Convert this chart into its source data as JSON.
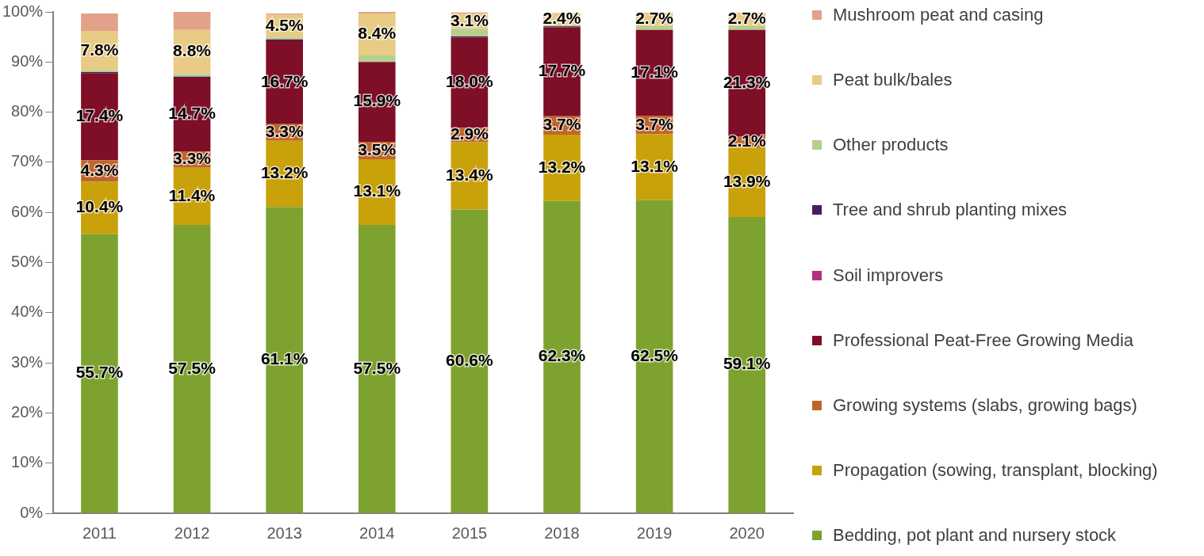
{
  "chart_data": {
    "type": "bar",
    "stacked": true,
    "categories": [
      "2011",
      "2012",
      "2013",
      "2014",
      "2015",
      "2018",
      "2019",
      "2020"
    ],
    "ylim": [
      0,
      100
    ],
    "yticks": [
      {
        "value": 0,
        "label": "0%"
      },
      {
        "value": 10,
        "label": "10%"
      },
      {
        "value": 20,
        "label": "20%"
      },
      {
        "value": 30,
        "label": "30%"
      },
      {
        "value": 40,
        "label": "40%"
      },
      {
        "value": 50,
        "label": "50%"
      },
      {
        "value": 60,
        "label": "60%"
      },
      {
        "value": 70,
        "label": "70%"
      },
      {
        "value": 80,
        "label": "80%"
      },
      {
        "value": 90,
        "label": "90%"
      },
      {
        "value": 100,
        "label": "100%"
      }
    ],
    "grid": false,
    "legend": "right",
    "series": [
      {
        "name": "Bedding, pot plant and nursery stock",
        "color": "#7ea22f",
        "values": [
          55.7,
          57.5,
          61.1,
          57.5,
          60.6,
          62.3,
          62.5,
          59.1
        ],
        "value_labels": [
          "55.7%",
          "57.5%",
          "61.1%",
          "57.5%",
          "60.6%",
          "62.3%",
          "62.5%",
          "59.1%"
        ]
      },
      {
        "name": "Propagation (sowing, transplant, blocking)",
        "color": "#c9a10a",
        "values": [
          10.4,
          11.4,
          13.2,
          13.1,
          13.4,
          13.2,
          13.1,
          13.9
        ],
        "value_labels": [
          "10.4%",
          "11.4%",
          "13.2%",
          "13.1%",
          "13.4%",
          "13.2%",
          "13.1%",
          "13.9%"
        ]
      },
      {
        "name": "Growing systems (slabs, growing bags)",
        "color": "#c0652a",
        "values": [
          4.3,
          3.3,
          3.3,
          3.5,
          2.9,
          3.7,
          3.7,
          2.1
        ],
        "value_labels": [
          "4.3%",
          "3.3%",
          "3.3%",
          "3.5%",
          "2.9%",
          "3.7%",
          "3.7%",
          "2.1%"
        ]
      },
      {
        "name": "Professional Peat-Free Growing Media",
        "color": "#7f0e27",
        "values": [
          17.4,
          14.7,
          16.7,
          15.9,
          18.0,
          17.7,
          17.1,
          21.3
        ],
        "value_labels": [
          "17.4%",
          "14.7%",
          "16.7%",
          "15.9%",
          "18.0%",
          "17.7%",
          "17.1%",
          "21.3%"
        ]
      },
      {
        "name": "Soil improvers",
        "color": "#b5317f",
        "values": [
          0,
          0,
          0,
          0,
          0,
          0,
          0,
          0
        ]
      },
      {
        "name": "Tree and shrub planting mixes",
        "color": "#4b1b5e",
        "values": [
          0.2,
          0.2,
          0.2,
          0,
          0.2,
          0.2,
          0,
          0
        ]
      },
      {
        "name": "Other products",
        "color": "#b4cf8e",
        "values": [
          0.4,
          0.5,
          0.4,
          1.3,
          1.5,
          0.3,
          0.8,
          0.8
        ]
      },
      {
        "name": "Peat bulk/bales",
        "color": "#e8cb85",
        "values": [
          7.8,
          8.8,
          4.5,
          8.4,
          3.1,
          2.4,
          2.7,
          2.7
        ],
        "value_labels": [
          "7.8%",
          "8.8%",
          "4.5%",
          "8.4%",
          "3.1%",
          "2.4%",
          "2.7%",
          "2.7%"
        ]
      },
      {
        "name": "Mushroom peat and casing",
        "color": "#e2a28a",
        "values": [
          3.5,
          3.6,
          0.3,
          0.3,
          0.2,
          0,
          0,
          0
        ]
      }
    ]
  }
}
